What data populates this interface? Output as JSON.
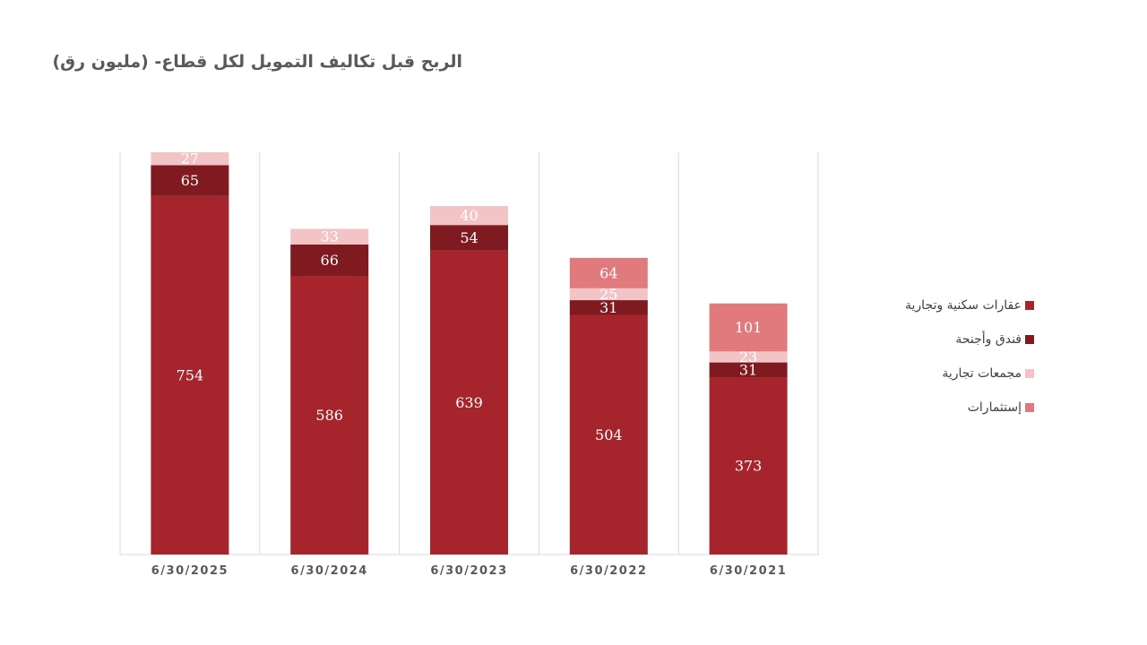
{
  "title": "الربح قبل تكاليف التمويل لكل قطاع- (مليون رق)",
  "chart_data": {
    "type": "bar",
    "stacked": true,
    "title": "الربح قبل تكاليف التمويل لكل قطاع- (مليون رق)",
    "categories": [
      "6/30/2025",
      "6/30/2024",
      "6/30/2023",
      "6/30/2022",
      "6/30/2021"
    ],
    "series": [
      {
        "name": "عقارات سكنية وتجارية",
        "values": [
          754,
          586,
          639,
          504,
          373
        ],
        "color": "#a6242b",
        "label_color": "#ffffff"
      },
      {
        "name": "فندق وأجنحة",
        "values": [
          65,
          66,
          54,
          31,
          31
        ],
        "color": "#7f1a21",
        "label_color": "#ffffff"
      },
      {
        "name": "مجمعات تجارية",
        "values": [
          27,
          33,
          40,
          25,
          23
        ],
        "color": "#f2c4c6",
        "label_color": "#ffffff"
      },
      {
        "name": "إستثمارات",
        "values": [
          0,
          0,
          0,
          64,
          101
        ],
        "color": "#e07a7d",
        "label_color": "#ffffff"
      }
    ],
    "ylim": [
      0,
      846
    ],
    "grid": false,
    "vertical_separators": true,
    "legend_position": "right",
    "y_axis_visible": false
  }
}
